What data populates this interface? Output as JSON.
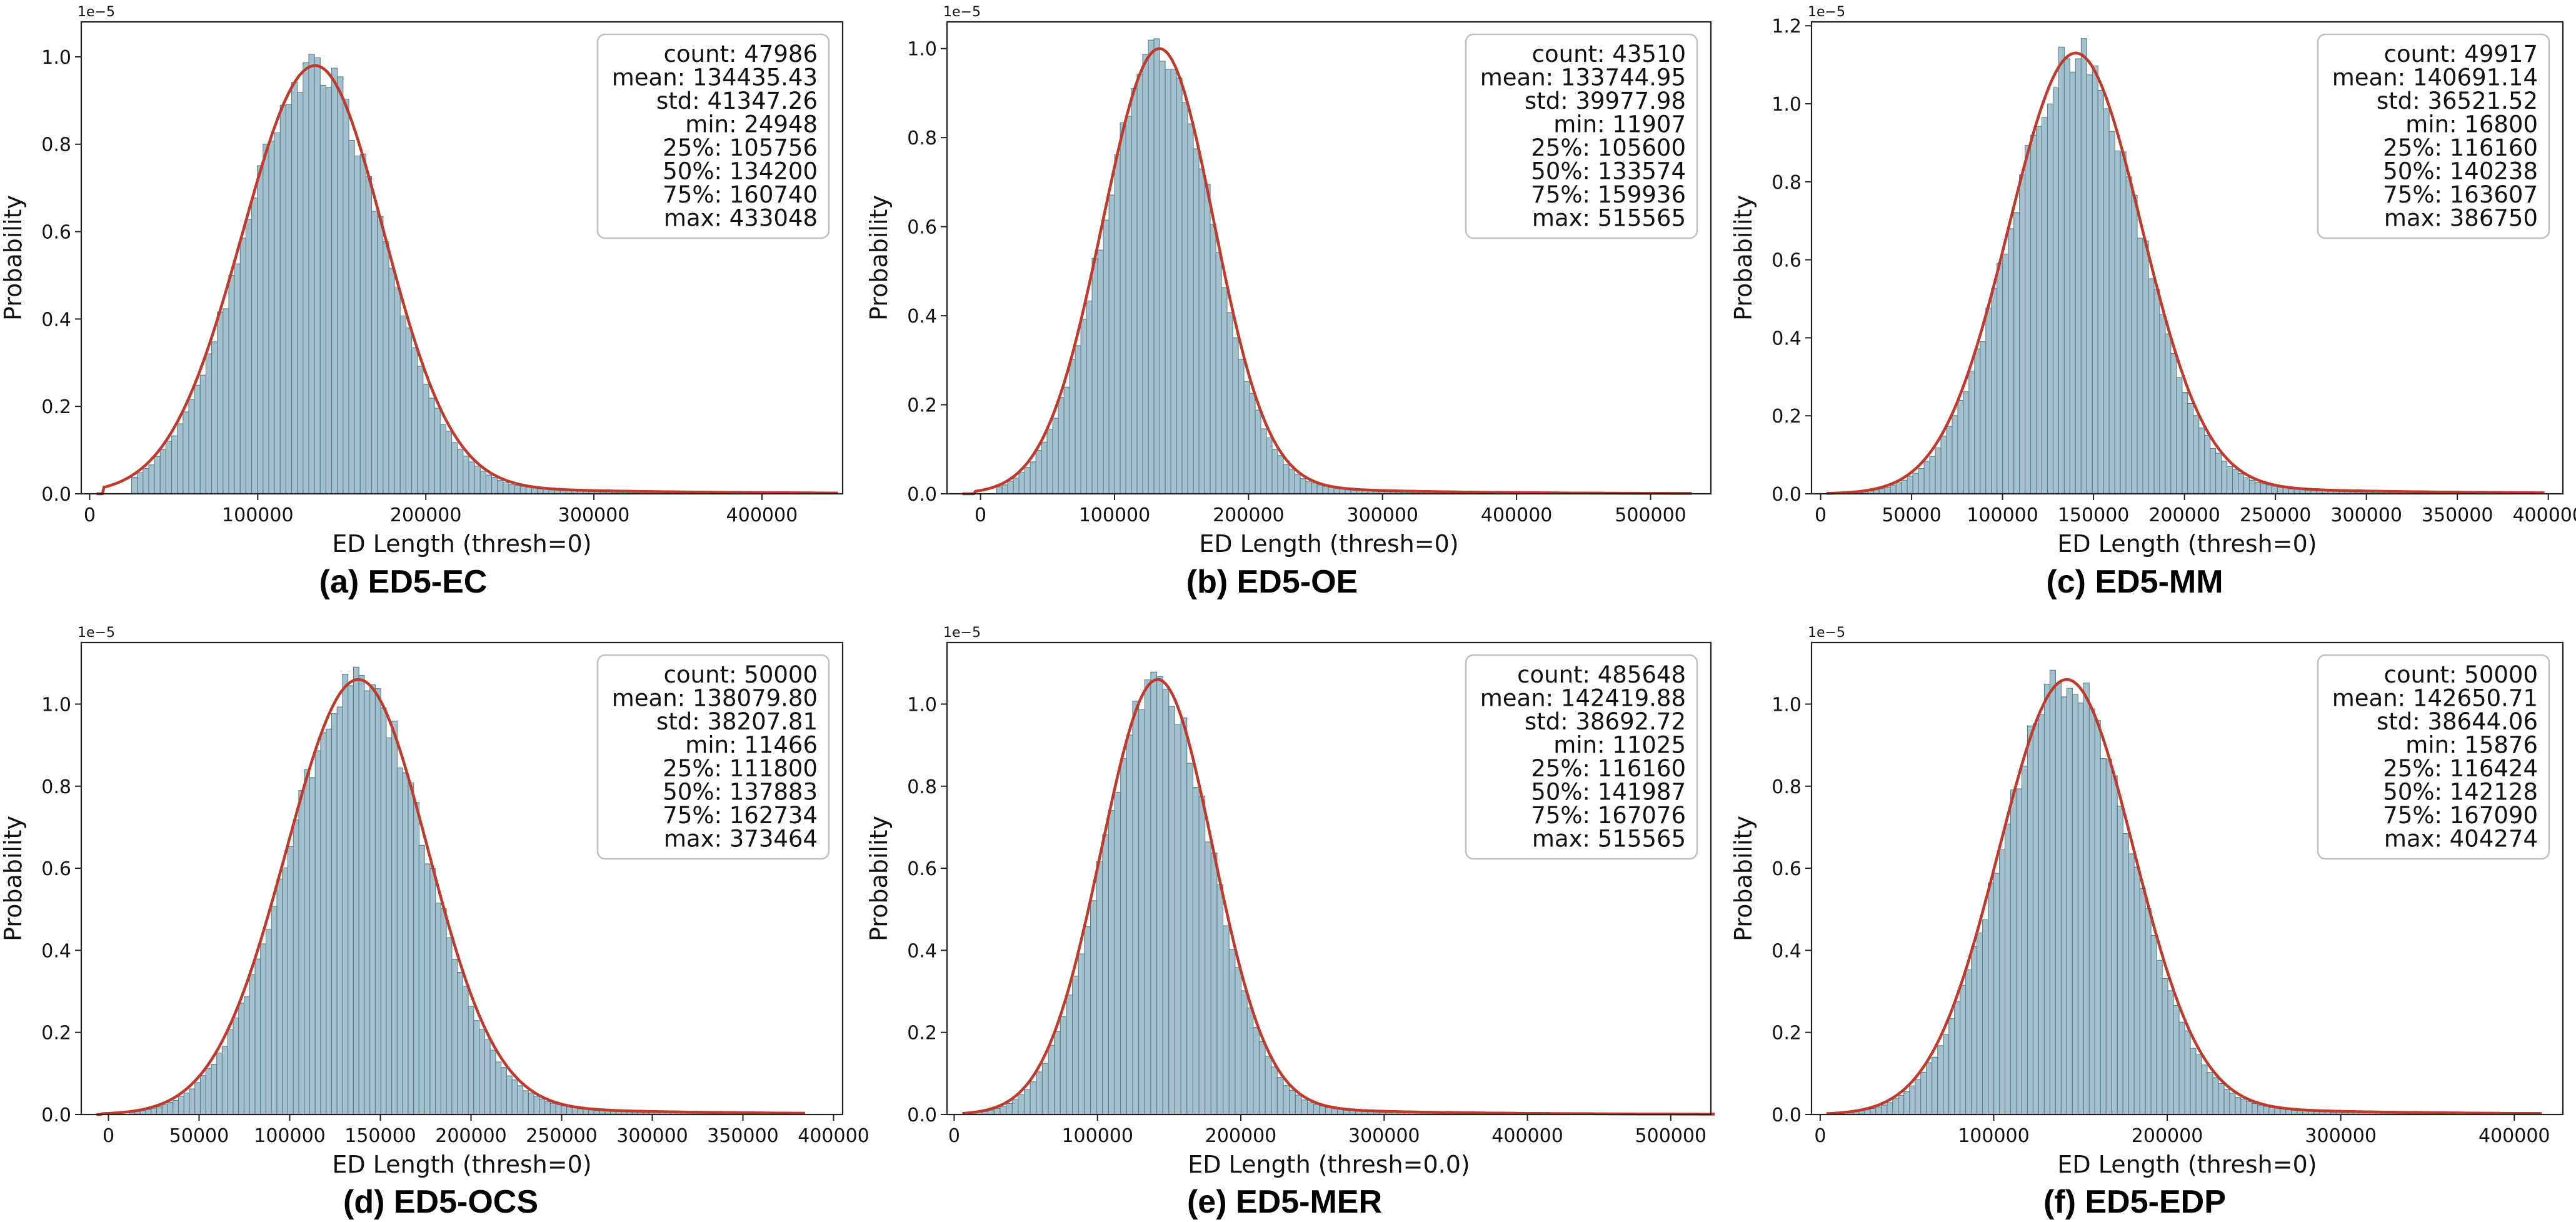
{
  "style": {
    "bar_fill": "#a3c0cc",
    "bar_edge": "#53808f",
    "kde_color": "#c0392b"
  },
  "offset_text": "1e−5",
  "ylabel": "Probability",
  "chart_data": [
    {
      "type": "bar",
      "panel_caption": "(a) ED5-EC",
      "xlabel": "ED Length (thresh=0)",
      "ylabel": "Probability",
      "xlim": [
        -5000,
        448000
      ],
      "ylim": [
        0,
        1.08
      ],
      "y_scale_exponent": -5,
      "xticks": [
        0,
        100000,
        200000,
        300000,
        400000
      ],
      "yticks": [
        0.0,
        0.2,
        0.4,
        0.6,
        0.8,
        1.0
      ],
      "distribution": {
        "mean": 134435.43,
        "std": 41347.26,
        "min": 24948,
        "max": 433048,
        "q25": 105756,
        "q50": 134200,
        "q75": 160740,
        "peak_density": 0.98
      },
      "stats": [
        "count: 47986",
        "mean: 134435.43",
        "std: 41347.26",
        "min: 24948",
        "25%: 105756",
        "50%: 134200",
        "75%: 160740",
        "max: 433048"
      ]
    },
    {
      "type": "bar",
      "panel_caption": "(b) ED5-OE",
      "xlabel": "ED Length (thresh=0)",
      "ylabel": "Probability",
      "xlim": [
        -25000,
        545000
      ],
      "ylim": [
        0,
        1.06
      ],
      "y_scale_exponent": -5,
      "xticks": [
        0,
        100000,
        200000,
        300000,
        400000,
        500000
      ],
      "yticks": [
        0.0,
        0.2,
        0.4,
        0.6,
        0.8,
        1.0
      ],
      "distribution": {
        "mean": 133744.95,
        "std": 39977.98,
        "min": 11907,
        "max": 515565,
        "q25": 105600,
        "q50": 133574,
        "q75": 159936,
        "peak_density": 1.0
      },
      "stats": [
        "count: 43510",
        "mean: 133744.95",
        "std: 39977.98",
        "min: 11907",
        "25%: 105600",
        "50%: 133574",
        "75%: 159936",
        "max: 515565"
      ]
    },
    {
      "type": "bar",
      "panel_caption": "(c) ED5-MM",
      "xlabel": "ED Length (thresh=0)",
      "ylabel": "Probability",
      "xlim": [
        -5000,
        408000
      ],
      "ylim": [
        0,
        1.21
      ],
      "y_scale_exponent": -5,
      "xticks": [
        0,
        50000,
        100000,
        150000,
        200000,
        250000,
        300000,
        350000,
        400000
      ],
      "yticks": [
        0.0,
        0.2,
        0.4,
        0.6,
        0.8,
        1.0,
        1.2
      ],
      "distribution": {
        "mean": 140691.14,
        "std": 36521.52,
        "min": 16800,
        "max": 386750,
        "q25": 116160,
        "q50": 140238,
        "q75": 163607,
        "peak_density": 1.13
      },
      "stats": [
        "count: 49917",
        "mean: 140691.14",
        "std: 36521.52",
        "min: 16800",
        "25%: 116160",
        "50%: 140238",
        "75%: 163607",
        "max: 386750"
      ]
    },
    {
      "type": "bar",
      "panel_caption": "(d) ED5-OCS",
      "xlabel": "ED Length (thresh=0)",
      "ylabel": "Probability",
      "xlim": [
        -15000,
        405000
      ],
      "ylim": [
        0,
        1.15
      ],
      "y_scale_exponent": -5,
      "xticks": [
        0,
        50000,
        100000,
        150000,
        200000,
        250000,
        300000,
        350000,
        400000
      ],
      "yticks": [
        0.0,
        0.2,
        0.4,
        0.6,
        0.8,
        1.0
      ],
      "distribution": {
        "mean": 138079.8,
        "std": 38207.81,
        "min": 11466,
        "max": 373464,
        "q25": 111800,
        "q50": 137883,
        "q75": 162734,
        "peak_density": 1.06
      },
      "stats": [
        "count: 50000",
        "mean: 138079.80",
        "std: 38207.81",
        "min: 11466",
        "25%: 111800",
        "50%: 137883",
        "75%: 162734",
        "max: 373464"
      ]
    },
    {
      "type": "bar",
      "panel_caption": "(e) ED5-MER",
      "xlabel": "ED Length (thresh=0.0)",
      "ylabel": "Probability",
      "xlim": [
        -5000,
        528000
      ],
      "ylim": [
        0,
        1.15
      ],
      "y_scale_exponent": -5,
      "xticks": [
        0,
        100000,
        200000,
        300000,
        400000,
        500000
      ],
      "yticks": [
        0.0,
        0.2,
        0.4,
        0.6,
        0.8,
        1.0
      ],
      "distribution": {
        "mean": 142419.88,
        "std": 38692.72,
        "min": 11025,
        "max": 515565,
        "q25": 116160,
        "q50": 141987,
        "q75": 167076,
        "peak_density": 1.06
      },
      "stats": [
        "count: 485648",
        "mean: 142419.88",
        "std: 38692.72",
        "min: 11025",
        "25%: 116160",
        "50%: 141987",
        "75%: 167076",
        "max: 515565"
      ]
    },
    {
      "type": "bar",
      "panel_caption": "(f) ED5-EDP",
      "xlabel": "ED Length (thresh=0)",
      "ylabel": "Probability",
      "xlim": [
        -5000,
        428000
      ],
      "ylim": [
        0,
        1.15
      ],
      "y_scale_exponent": -5,
      "xticks": [
        0,
        100000,
        200000,
        300000,
        400000
      ],
      "yticks": [
        0.0,
        0.2,
        0.4,
        0.6,
        0.8,
        1.0
      ],
      "distribution": {
        "mean": 142650.71,
        "std": 38644.06,
        "min": 15876,
        "max": 404274,
        "q25": 116424,
        "q50": 142128,
        "q75": 167090,
        "peak_density": 1.06
      },
      "stats": [
        "count: 50000",
        "mean: 142650.71",
        "std: 38644.06",
        "min: 15876",
        "25%: 116424",
        "50%: 142128",
        "75%: 167090",
        "max: 404274"
      ]
    }
  ]
}
